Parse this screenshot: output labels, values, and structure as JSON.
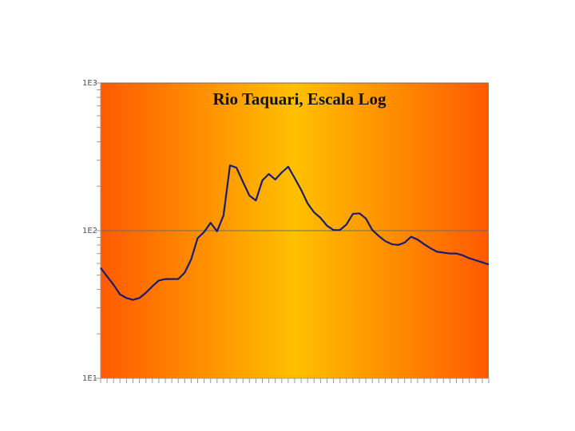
{
  "chart_data": {
    "type": "line",
    "title": "Rio Taquari, Escala Log",
    "categories": [
      null,
      null,
      null,
      null,
      null,
      null,
      null,
      null,
      null,
      null,
      null,
      null,
      null,
      null,
      null,
      null,
      null,
      null,
      null,
      null,
      null,
      null,
      null,
      null,
      null,
      null,
      null,
      null,
      null,
      null,
      null,
      null,
      null,
      null,
      null,
      null,
      null,
      null,
      null,
      null,
      null,
      null,
      null,
      null,
      null,
      null,
      null,
      null,
      null,
      null,
      null,
      null,
      null,
      null,
      null,
      null,
      null,
      null,
      null,
      null,
      null
    ],
    "series": [
      {
        "name": null,
        "color": "#1c1c6e",
        "values": [
          56,
          49,
          43,
          37,
          35,
          34,
          35,
          38,
          42,
          46,
          47,
          47,
          47,
          52,
          64,
          89,
          98,
          113,
          99,
          127,
          277,
          267,
          214,
          173,
          160,
          219,
          242,
          222,
          248,
          271,
          227,
          189,
          153,
          133,
          122,
          108,
          101,
          101,
          110,
          130,
          131,
          121,
          101,
          92,
          85,
          81,
          80,
          83,
          91,
          87,
          81,
          76,
          72,
          71,
          70,
          70,
          68,
          65,
          63,
          61,
          59
        ]
      }
    ],
    "log_scale": true,
    "ylim": [
      10,
      1000
    ],
    "yticks": [
      {
        "value": 10,
        "label": "1E1"
      },
      {
        "value": 100,
        "label": "1E2"
      },
      {
        "value": 1000,
        "label": "1E3"
      }
    ],
    "grid": true
  }
}
